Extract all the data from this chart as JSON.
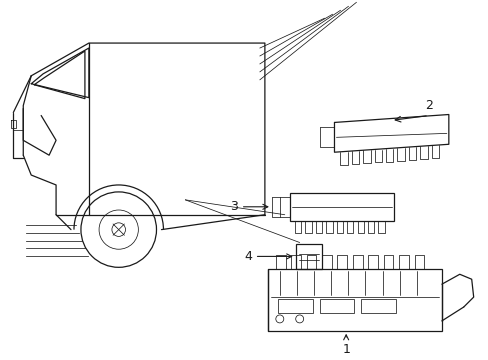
{
  "bg_color": "#ffffff",
  "line_color": "#1a1a1a",
  "lw": 0.9,
  "lw_thin": 0.55,
  "fig_width": 4.89,
  "fig_height": 3.6,
  "dpi": 100
}
